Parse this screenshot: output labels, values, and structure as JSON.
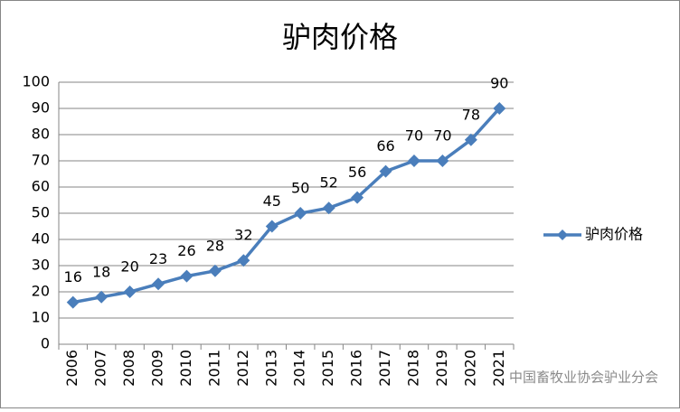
{
  "chart_data": {
    "type": "line",
    "title": "驴肉价格",
    "categories": [
      "2006",
      "2007",
      "2008",
      "2009",
      "2010",
      "2011",
      "2012",
      "2013",
      "2014",
      "2015",
      "2016",
      "2017",
      "2018",
      "2019",
      "2020",
      "2021"
    ],
    "series": [
      {
        "name": "驴肉价格",
        "color": "#4a7ebb",
        "values": [
          16,
          18,
          20,
          23,
          26,
          28,
          32,
          45,
          50,
          52,
          56,
          66,
          70,
          70,
          78,
          90
        ]
      }
    ],
    "ylim": [
      0,
      100
    ],
    "yticks": [
      0,
      10,
      20,
      30,
      40,
      50,
      60,
      70,
      80,
      90,
      100
    ],
    "grid": true,
    "legend": "right",
    "watermark": "中国畜牧业协会驴业分会"
  }
}
